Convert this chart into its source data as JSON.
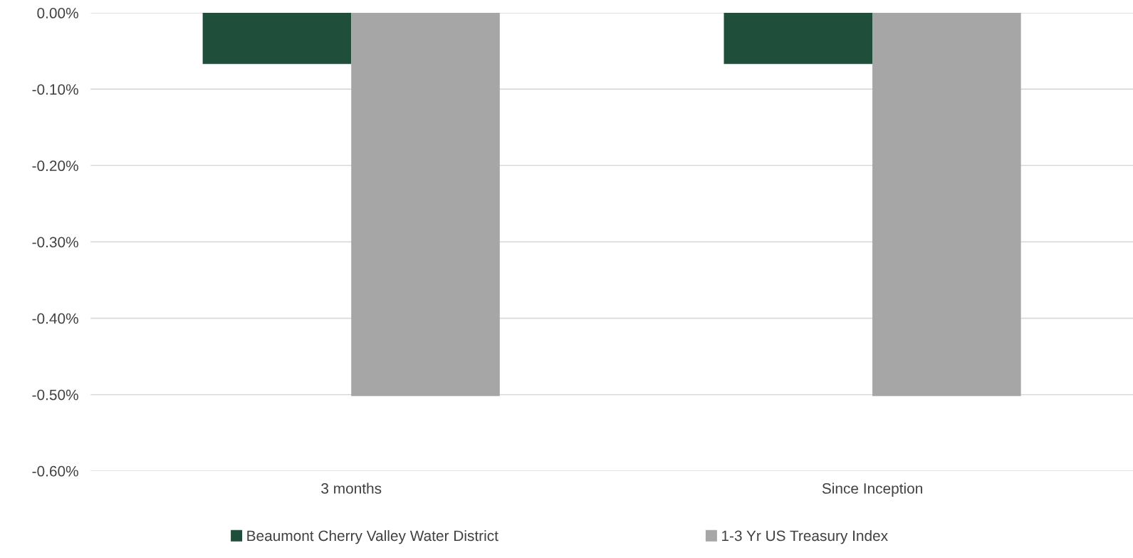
{
  "chart_data": {
    "type": "bar",
    "categories": [
      "3 months",
      "Since Inception"
    ],
    "series": [
      {
        "name": "Beaumont Cherry Valley Water District",
        "color": "#1f4e3a",
        "values": [
          -0.067,
          -0.067
        ]
      },
      {
        "name": "1-3 Yr US Treasury Index",
        "color": "#a6a6a6",
        "values": [
          -0.502,
          -0.502
        ]
      }
    ],
    "ylim": [
      -0.6,
      0
    ],
    "yticks": [
      {
        "value": 0,
        "label": "0.00%"
      },
      {
        "value": -0.1,
        "label": "-0.10%"
      },
      {
        "value": -0.2,
        "label": "-0.20%"
      },
      {
        "value": -0.3,
        "label": "-0.30%"
      },
      {
        "value": -0.4,
        "label": "-0.40%"
      },
      {
        "value": -0.5,
        "label": "-0.50%"
      },
      {
        "value": -0.6,
        "label": "-0.60%"
      }
    ],
    "grid": "y",
    "legend": "bottom"
  }
}
